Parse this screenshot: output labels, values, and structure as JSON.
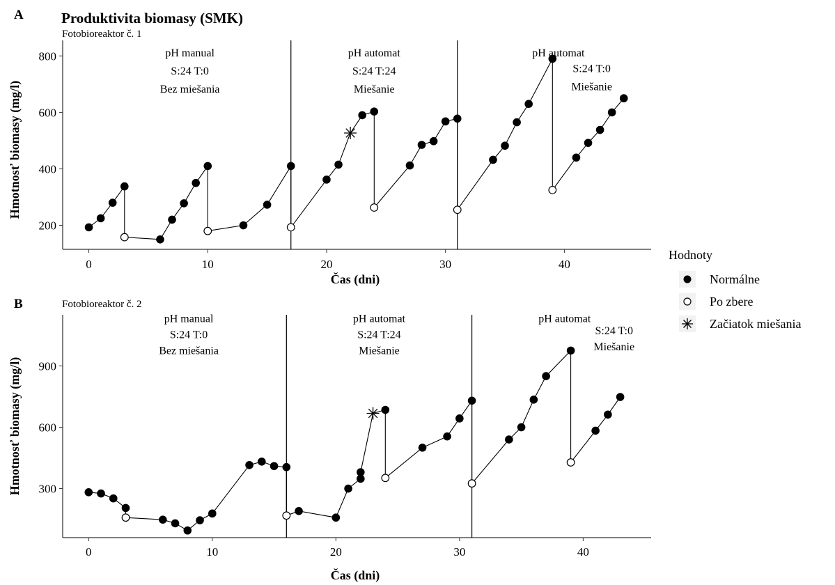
{
  "figure": {
    "title": "Produktivita biomasy (SMK)"
  },
  "legend": {
    "title": "Hodnoty",
    "items": [
      {
        "label": "Normálne",
        "marker": "filled-circle"
      },
      {
        "label": "Po zbere",
        "marker": "open-circle"
      },
      {
        "label": "Začiatok miešania",
        "marker": "asterisk"
      }
    ]
  },
  "colors": {
    "marker": "#000000",
    "line": "#000000",
    "background": "#ffffff",
    "legend_key_bg": "#f2f2f2"
  },
  "chart_data": [
    {
      "type": "scatter",
      "panel": "A",
      "subtitle": "Fotobioreaktor č. 1",
      "xlabel": "Čas (dni)",
      "ylabel": "Hmotnosť biomasy (mg/l)",
      "xlim": [
        -2.2,
        47.3
      ],
      "ylim": [
        115,
        855
      ],
      "xticks": [
        0,
        10,
        20,
        30,
        40
      ],
      "yticks": [
        200,
        400,
        600,
        800
      ],
      "grid": false,
      "legend_position": "right",
      "vlines": [
        17,
        31
      ],
      "annotations": [
        {
          "lines": [
            "pH manual",
            "S:24 T:0",
            "Bez miešania"
          ],
          "x": 8.5,
          "y": 798
        },
        {
          "lines": [
            "pH automat",
            "S:24 T:24",
            "Miešanie"
          ],
          "x": 24,
          "y": 798
        },
        {
          "lines": [
            "pH automat"
          ],
          "x": 39.5,
          "y": 798
        },
        {
          "lines": [
            "S:24 T:0",
            "Miešanie"
          ],
          "x": 42.3,
          "y": 743
        }
      ],
      "segments": [
        [
          [
            0,
            193
          ],
          [
            1,
            225
          ],
          [
            2,
            280
          ],
          [
            3,
            338
          ],
          [
            3,
            158
          ],
          [
            6,
            150
          ],
          [
            7,
            220
          ],
          [
            8,
            278
          ],
          [
            9,
            350
          ],
          [
            10,
            410
          ],
          [
            10,
            180
          ],
          [
            13,
            200
          ],
          [
            15,
            273
          ],
          [
            17,
            410
          ],
          [
            17,
            193
          ],
          [
            20,
            362
          ],
          [
            21,
            415
          ],
          [
            22,
            527
          ],
          [
            23,
            590
          ],
          [
            24,
            603
          ],
          [
            24,
            263
          ],
          [
            27,
            412
          ],
          [
            28,
            485
          ],
          [
            29,
            498
          ],
          [
            30,
            568
          ],
          [
            31,
            578
          ],
          [
            31,
            255
          ],
          [
            34,
            432
          ],
          [
            35,
            482
          ],
          [
            36,
            565
          ],
          [
            37,
            630
          ],
          [
            39,
            790
          ],
          [
            39,
            325
          ],
          [
            41,
            440
          ],
          [
            42,
            492
          ],
          [
            43,
            538
          ],
          [
            44,
            600
          ],
          [
            45,
            650
          ]
        ]
      ],
      "points": {
        "normal": [
          [
            0,
            193
          ],
          [
            1,
            225
          ],
          [
            2,
            280
          ],
          [
            3,
            338
          ],
          [
            6,
            150
          ],
          [
            7,
            220
          ],
          [
            8,
            278
          ],
          [
            9,
            350
          ],
          [
            10,
            410
          ],
          [
            13,
            200
          ],
          [
            15,
            273
          ],
          [
            17,
            410
          ],
          [
            20,
            362
          ],
          [
            21,
            415
          ],
          [
            23,
            590
          ],
          [
            24,
            603
          ],
          [
            27,
            412
          ],
          [
            28,
            485
          ],
          [
            29,
            498
          ],
          [
            30,
            568
          ],
          [
            31,
            578
          ],
          [
            34,
            432
          ],
          [
            35,
            482
          ],
          [
            36,
            565
          ],
          [
            37,
            630
          ],
          [
            39,
            790
          ],
          [
            41,
            440
          ],
          [
            42,
            492
          ],
          [
            43,
            538
          ],
          [
            44,
            600
          ],
          [
            45,
            650
          ]
        ],
        "after_harvest": [
          [
            3,
            158
          ],
          [
            10,
            180
          ],
          [
            17,
            193
          ],
          [
            24,
            263
          ],
          [
            31,
            255
          ],
          [
            39,
            325
          ]
        ],
        "mixing_start": [
          [
            22,
            527
          ]
        ]
      }
    },
    {
      "type": "scatter",
      "panel": "B",
      "subtitle": "Fotobioreaktor č. 2",
      "xlabel": "Čas (dni)",
      "ylabel": "Hmotnosť biomasy (mg/l)",
      "xlim": [
        -2.1,
        45.5
      ],
      "ylim": [
        60,
        1150
      ],
      "xticks": [
        0,
        10,
        20,
        30,
        40
      ],
      "yticks": [
        300,
        600,
        900
      ],
      "grid": false,
      "legend_position": "right",
      "vlines": [
        16,
        31
      ],
      "annotations": [
        {
          "lines": [
            "pH manual",
            "S:24 T:0",
            "Bez miešania"
          ],
          "x": 8.1,
          "y": 1115
        },
        {
          "lines": [
            "pH automat",
            "S:24 T:24",
            "Miešanie"
          ],
          "x": 23.5,
          "y": 1115
        },
        {
          "lines": [
            "pH automat"
          ],
          "x": 38.5,
          "y": 1115
        },
        {
          "lines": [
            "S:24 T:0",
            "Miešanie"
          ],
          "x": 42.5,
          "y": 1055
        }
      ],
      "segments": [
        [
          [
            0,
            282
          ],
          [
            1,
            276
          ],
          [
            2,
            252
          ],
          [
            3,
            205
          ],
          [
            3,
            158
          ],
          [
            6,
            148
          ],
          [
            7,
            130
          ],
          [
            8,
            95
          ],
          [
            9,
            145
          ],
          [
            10,
            178
          ],
          [
            13,
            415
          ],
          [
            14,
            432
          ],
          [
            15,
            410
          ],
          [
            16,
            405
          ],
          [
            16,
            168
          ],
          [
            17,
            190
          ],
          [
            20,
            158
          ],
          [
            21,
            300
          ],
          [
            22,
            348
          ],
          [
            22,
            380
          ],
          [
            23,
            668
          ],
          [
            24,
            685
          ],
          [
            24,
            352
          ],
          [
            27,
            500
          ],
          [
            29,
            555
          ],
          [
            30,
            643
          ],
          [
            31,
            730
          ],
          [
            31,
            325
          ],
          [
            34,
            540
          ],
          [
            35,
            600
          ],
          [
            36,
            735
          ],
          [
            37,
            850
          ],
          [
            39,
            975
          ],
          [
            39,
            428
          ],
          [
            41,
            583
          ],
          [
            42,
            662
          ],
          [
            43,
            748
          ]
        ]
      ],
      "points": {
        "normal": [
          [
            0,
            282
          ],
          [
            1,
            276
          ],
          [
            2,
            252
          ],
          [
            3,
            205
          ],
          [
            6,
            148
          ],
          [
            7,
            130
          ],
          [
            8,
            95
          ],
          [
            9,
            145
          ],
          [
            10,
            178
          ],
          [
            13,
            415
          ],
          [
            14,
            432
          ],
          [
            15,
            410
          ],
          [
            16,
            405
          ],
          [
            17,
            190
          ],
          [
            20,
            158
          ],
          [
            21,
            300
          ],
          [
            22,
            348
          ],
          [
            22,
            380
          ],
          [
            24,
            685
          ],
          [
            27,
            500
          ],
          [
            29,
            555
          ],
          [
            30,
            643
          ],
          [
            31,
            730
          ],
          [
            34,
            540
          ],
          [
            35,
            600
          ],
          [
            36,
            735
          ],
          [
            37,
            850
          ],
          [
            39,
            975
          ],
          [
            41,
            583
          ],
          [
            42,
            662
          ],
          [
            43,
            748
          ]
        ],
        "after_harvest": [
          [
            3,
            158
          ],
          [
            16,
            168
          ],
          [
            24,
            352
          ],
          [
            31,
            325
          ],
          [
            39,
            428
          ]
        ],
        "mixing_start": [
          [
            23,
            668
          ]
        ]
      }
    }
  ]
}
